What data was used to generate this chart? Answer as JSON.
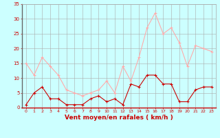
{
  "hours": [
    0,
    1,
    2,
    3,
    4,
    5,
    6,
    7,
    8,
    9,
    10,
    11,
    12,
    13,
    14,
    15,
    16,
    17,
    18,
    19,
    20,
    21,
    22,
    23
  ],
  "wind_avg": [
    1,
    5,
    7,
    3,
    3,
    1,
    1,
    1,
    3,
    4,
    2,
    3,
    1,
    8,
    7,
    11,
    11,
    8,
    8,
    2,
    2,
    6,
    7,
    7
  ],
  "wind_gust": [
    15,
    11,
    17,
    14,
    11,
    6,
    5,
    4,
    5,
    6,
    9,
    5,
    14,
    9,
    17,
    27,
    32,
    25,
    27,
    22,
    14,
    21,
    20,
    19
  ],
  "wind_avg_color": "#cc0000",
  "wind_gust_color": "#ffaaaa",
  "background_color": "#ccffff",
  "grid_color": "#aaaaaa",
  "xlabel": "Vent moyen/en rafales ( km/h )",
  "xlabel_color": "#cc0000",
  "tick_color": "#cc0000",
  "ylim": [
    0,
    35
  ],
  "yticks": [
    0,
    5,
    10,
    15,
    20,
    25,
    30,
    35
  ]
}
